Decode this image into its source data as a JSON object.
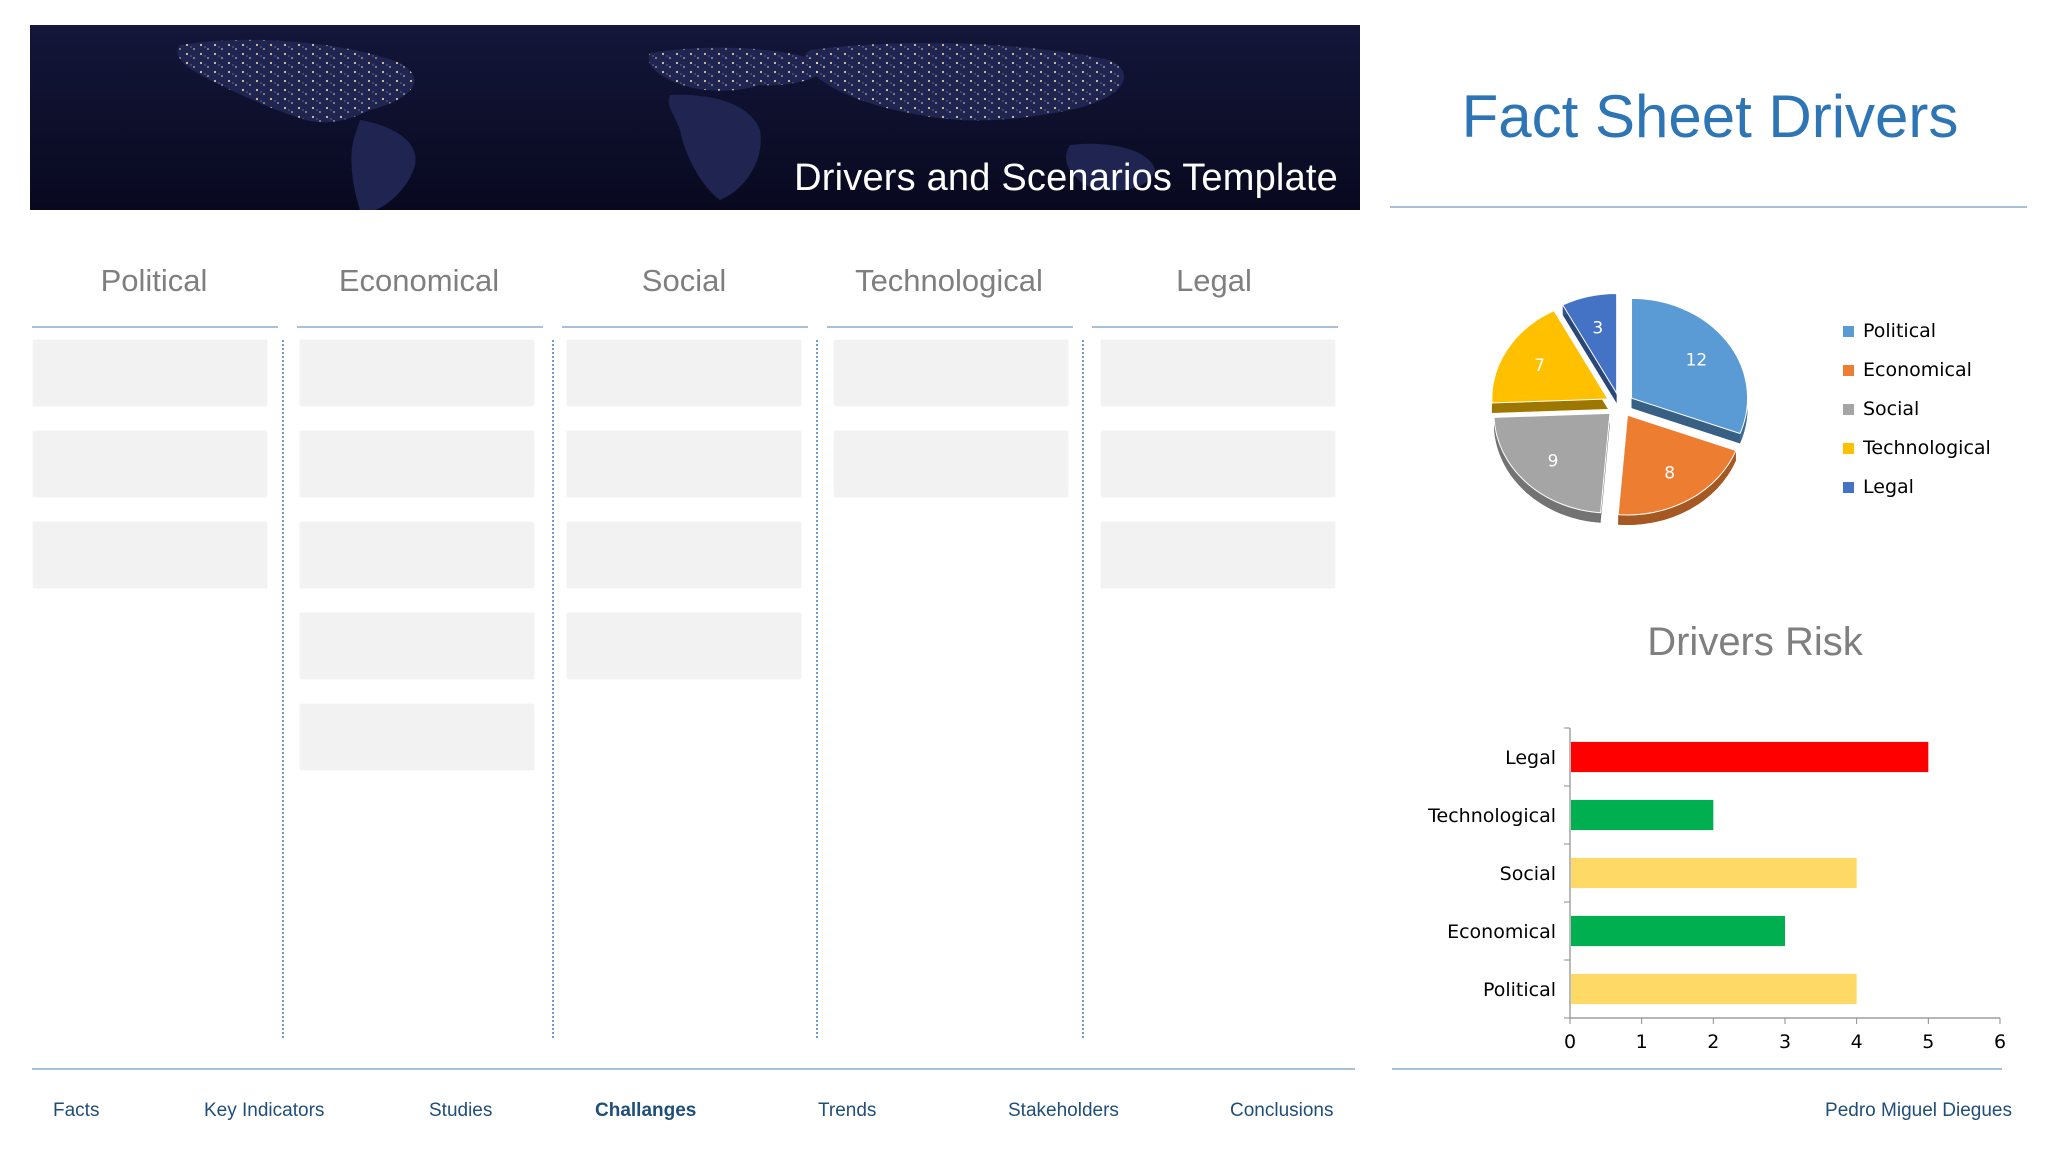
{
  "banner": {
    "title": "Drivers and Scenarios Template"
  },
  "fact_sheet": {
    "title": "Fact Sheet Drivers"
  },
  "columns": [
    {
      "label": "Political",
      "cards": 3
    },
    {
      "label": "Economical",
      "cards": 5
    },
    {
      "label": "Social",
      "cards": 4
    },
    {
      "label": "Technological",
      "cards": 2
    },
    {
      "label": "Legal",
      "cards": 3
    }
  ],
  "chart_data": [
    {
      "type": "pie",
      "categories": [
        "Political",
        "Economical",
        "Social",
        "Technological",
        "Legal"
      ],
      "values": [
        12,
        8,
        9,
        7,
        3
      ],
      "colors": [
        "#5b9bd5",
        "#ed7d31",
        "#a5a5a5",
        "#ffc000",
        "#4472c4"
      ],
      "title": "",
      "legend": "right",
      "style": "3d-exploded"
    },
    {
      "type": "bar",
      "orientation": "horizontal",
      "title": "Drivers Risk",
      "categories": [
        "Legal",
        "Technological",
        "Social",
        "Economical",
        "Political"
      ],
      "values": [
        5,
        2,
        4,
        3,
        4
      ],
      "colors": [
        "#ff0000",
        "#00b050",
        "#ffd966",
        "#00b050",
        "#ffd966"
      ],
      "xlim": [
        0,
        6
      ],
      "xticks": [
        "0",
        "1",
        "2",
        "3",
        "4",
        "5",
        "6"
      ],
      "grid": false,
      "legend": "none"
    }
  ],
  "nav": {
    "items": [
      "Facts",
      "Key Indicators",
      "Studies",
      "Challanges",
      "Trends",
      "Stakeholders",
      "Conclusions"
    ],
    "active": "Challanges"
  },
  "author": "Pedro Miguel Diegues"
}
